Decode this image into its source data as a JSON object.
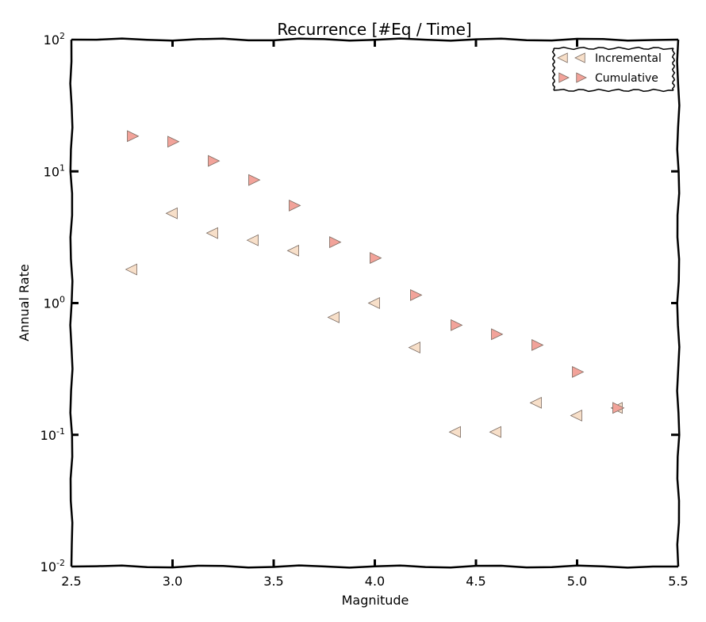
{
  "chart_data": {
    "type": "scatter",
    "title": "Recurrence [#Eq / Time]",
    "xlabel": "Magnitude",
    "ylabel": "Annual Rate",
    "xlim": [
      2.5,
      5.5
    ],
    "ylim": [
      0.01,
      100
    ],
    "yscale": "log",
    "x_ticks": [
      "2.5",
      "3.0",
      "3.5",
      "4.0",
      "4.5",
      "5.0",
      "5.5"
    ],
    "y_ticks": [
      {
        "base": "10",
        "exp": "-2"
      },
      {
        "base": "10",
        "exp": "-1"
      },
      {
        "base": "10",
        "exp": "0"
      },
      {
        "base": "10",
        "exp": "1"
      },
      {
        "base": "10",
        "exp": "2"
      }
    ],
    "grid": false,
    "legend_position": "top-right",
    "series": [
      {
        "name": "Incremental",
        "marker": "triangle-left",
        "color": "#f7dfc9",
        "x": [
          2.8,
          3.0,
          3.2,
          3.4,
          3.6,
          3.8,
          4.0,
          4.2,
          4.4,
          4.6,
          4.8,
          5.0,
          5.2
        ],
        "y": [
          1.8,
          4.8,
          3.4,
          3.0,
          2.5,
          0.78,
          1.0,
          0.46,
          0.105,
          0.105,
          0.175,
          0.14,
          0.16
        ]
      },
      {
        "name": "Cumulative",
        "marker": "triangle-right",
        "color": "#f2a39a",
        "x": [
          2.8,
          3.0,
          3.2,
          3.4,
          3.6,
          3.8,
          4.0,
          4.2,
          4.4,
          4.6,
          4.8,
          5.0,
          5.2
        ],
        "y": [
          18.5,
          16.8,
          12.0,
          8.6,
          5.5,
          2.9,
          2.2,
          1.15,
          0.68,
          0.58,
          0.48,
          0.3,
          0.16
        ]
      }
    ]
  }
}
